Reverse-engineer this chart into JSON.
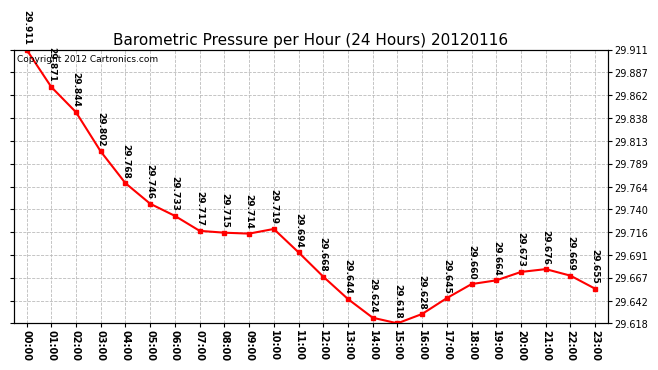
{
  "title": "Barometric Pressure per Hour (24 Hours) 20120116",
  "copyright": "Copyright 2012 Cartronics.com",
  "hours": [
    "00:00",
    "01:00",
    "02:00",
    "03:00",
    "04:00",
    "05:00",
    "06:00",
    "07:00",
    "08:00",
    "09:00",
    "10:00",
    "11:00",
    "12:00",
    "13:00",
    "14:00",
    "15:00",
    "16:00",
    "17:00",
    "18:00",
    "19:00",
    "20:00",
    "21:00",
    "22:00",
    "23:00"
  ],
  "values": [
    29.911,
    29.871,
    29.844,
    29.802,
    29.768,
    29.746,
    29.733,
    29.717,
    29.715,
    29.714,
    29.719,
    29.694,
    29.668,
    29.644,
    29.624,
    29.618,
    29.628,
    29.645,
    29.66,
    29.664,
    29.673,
    29.676,
    29.669,
    29.655
  ],
  "ylim_min": 29.618,
  "ylim_max": 29.911,
  "yticks": [
    29.618,
    29.642,
    29.667,
    29.691,
    29.716,
    29.74,
    29.764,
    29.789,
    29.813,
    29.838,
    29.862,
    29.887,
    29.911
  ],
  "line_color": "red",
  "marker_color": "red",
  "marker": "s",
  "marker_size": 3,
  "bg_color": "white",
  "grid_color": "#bbbbbb",
  "title_fontsize": 11,
  "label_fontsize": 7,
  "annotation_fontsize": 6.5,
  "copyright_fontsize": 6.5
}
